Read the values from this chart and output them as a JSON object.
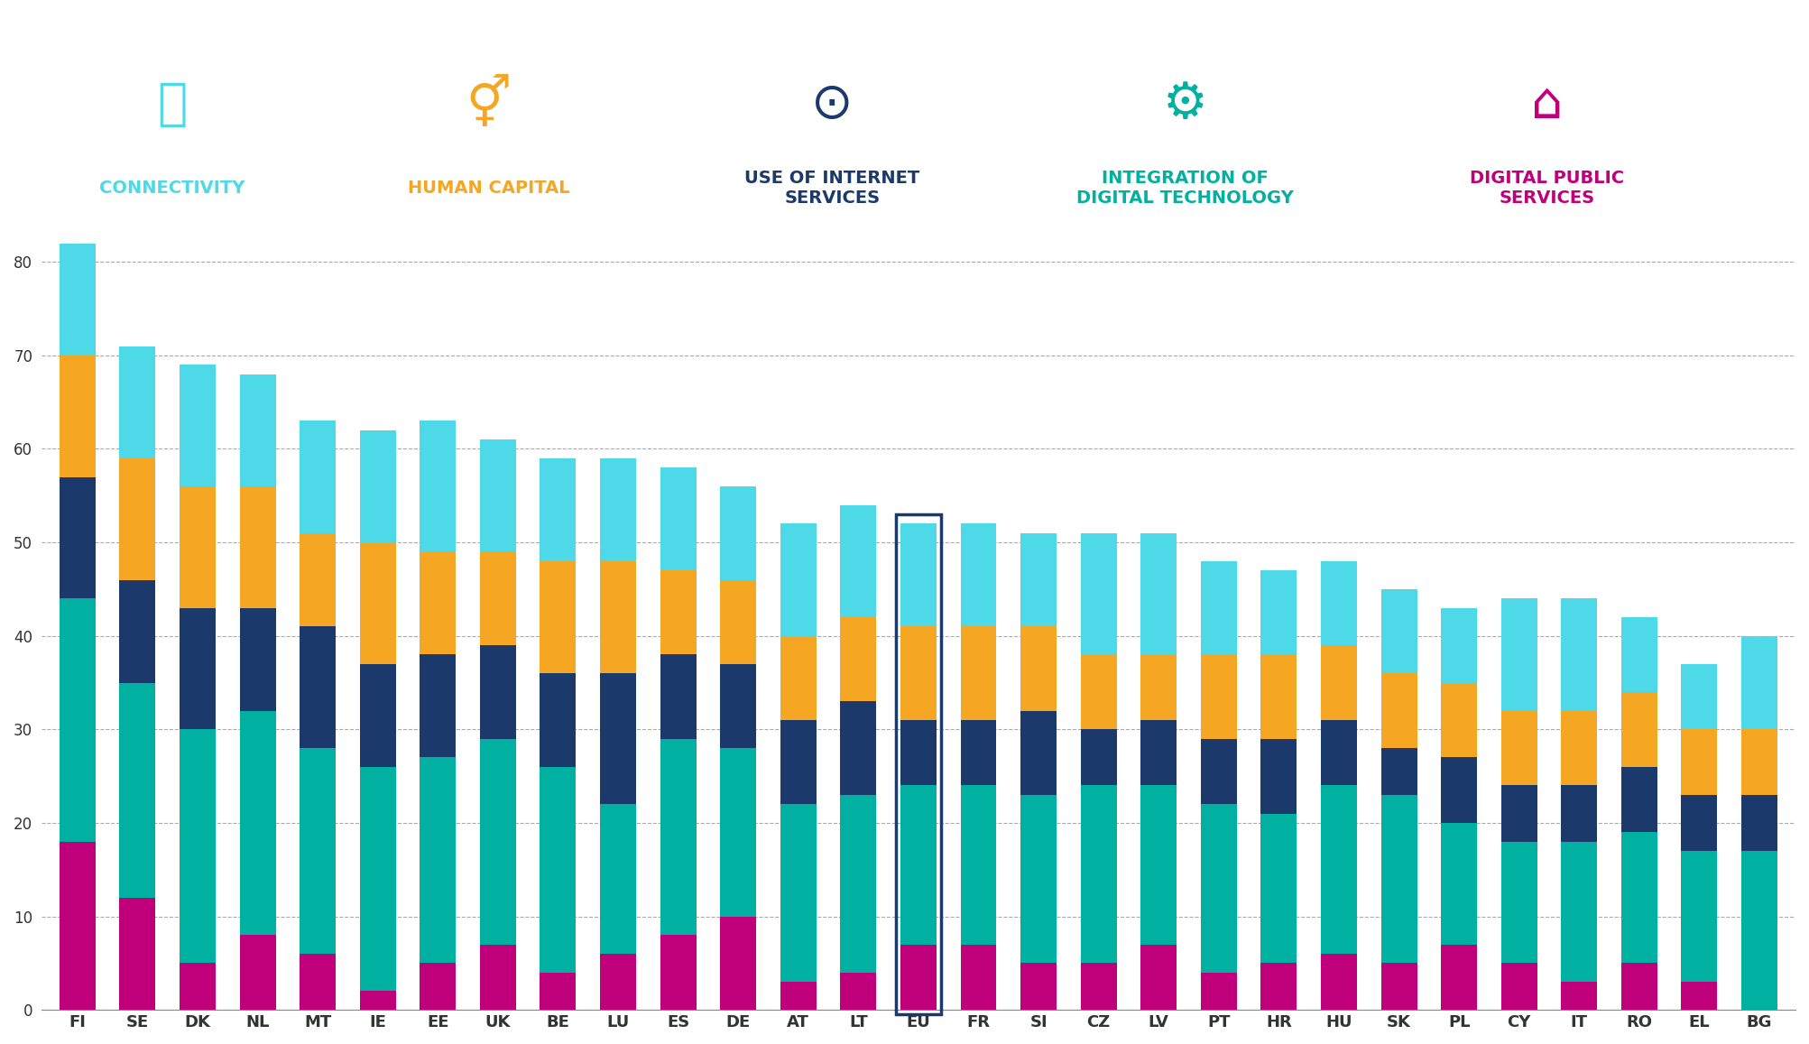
{
  "categories": [
    "FI",
    "SE",
    "DK",
    "NL",
    "MT",
    "IE",
    "EE",
    "UK",
    "BE",
    "LU",
    "ES",
    "DE",
    "AT",
    "LT",
    "EU",
    "FR",
    "SI",
    "CZ",
    "LV",
    "PT",
    "HR",
    "HU",
    "SK",
    "PL",
    "CY",
    "IT",
    "RO",
    "EL",
    "BG"
  ],
  "connectivity": [
    13,
    12,
    13,
    12,
    12,
    12,
    14,
    12,
    11,
    11,
    11,
    10,
    12,
    12,
    11,
    11,
    10,
    13,
    13,
    10,
    9,
    9,
    9,
    8,
    12,
    12,
    8,
    7,
    10
  ],
  "human_capital": [
    13,
    13,
    13,
    13,
    10,
    13,
    11,
    10,
    12,
    12,
    9,
    9,
    9,
    9,
    10,
    10,
    9,
    8,
    7,
    9,
    9,
    8,
    8,
    8,
    8,
    8,
    8,
    7,
    7
  ],
  "internet_services": [
    13,
    11,
    13,
    11,
    13,
    11,
    11,
    10,
    10,
    14,
    9,
    9,
    9,
    10,
    7,
    7,
    9,
    6,
    7,
    7,
    8,
    7,
    5,
    7,
    6,
    6,
    7,
    6,
    6
  ],
  "digital_tech": [
    26,
    23,
    25,
    24,
    22,
    24,
    22,
    22,
    22,
    16,
    21,
    18,
    19,
    19,
    17,
    17,
    18,
    19,
    17,
    18,
    16,
    18,
    18,
    13,
    13,
    15,
    14,
    14,
    17
  ],
  "digital_public": [
    18,
    12,
    5,
    8,
    6,
    2,
    5,
    7,
    4,
    6,
    8,
    10,
    3,
    4,
    7,
    7,
    5,
    5,
    7,
    4,
    5,
    6,
    5,
    7,
    5,
    3,
    5,
    3,
    0
  ],
  "colors": {
    "connectivity": "#4DD9E8",
    "human_capital": "#F5A623",
    "internet_services": "#1B3A6B",
    "digital_tech": "#00B0A0",
    "digital_public": "#C0007A"
  },
  "eu_box_color": "#1B3A6B",
  "background_color": "#ffffff",
  "grid_color": "#aaaaaa",
  "ylim": [
    0,
    82
  ],
  "yticks": [
    0,
    10,
    20,
    30,
    40,
    50,
    60,
    70,
    80
  ]
}
